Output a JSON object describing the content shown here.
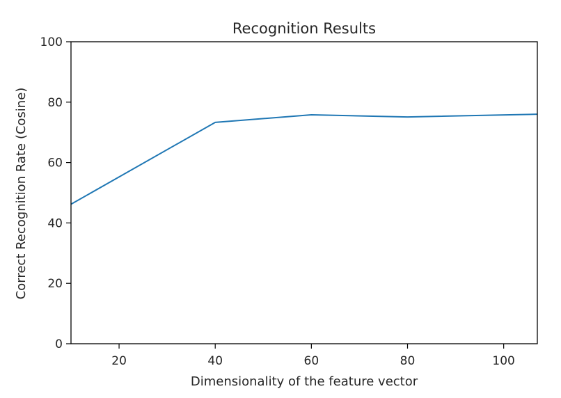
{
  "chart_data": {
    "type": "line",
    "title": "Recognition Results",
    "xlabel": "Dimensionality of the feature vector",
    "ylabel": "Correct Recognition Rate (Cosine)",
    "x": [
      10,
      40,
      60,
      80,
      107
    ],
    "series": [
      {
        "values": [
          46.2,
          73.3,
          75.8,
          75.1,
          76.0
        ],
        "color": "#1f77b4"
      }
    ],
    "xlim": [
      10,
      107
    ],
    "ylim": [
      0,
      100
    ],
    "xticks": [
      20,
      40,
      60,
      80,
      100
    ],
    "yticks": [
      0,
      20,
      40,
      60,
      80,
      100
    ],
    "grid": false
  }
}
